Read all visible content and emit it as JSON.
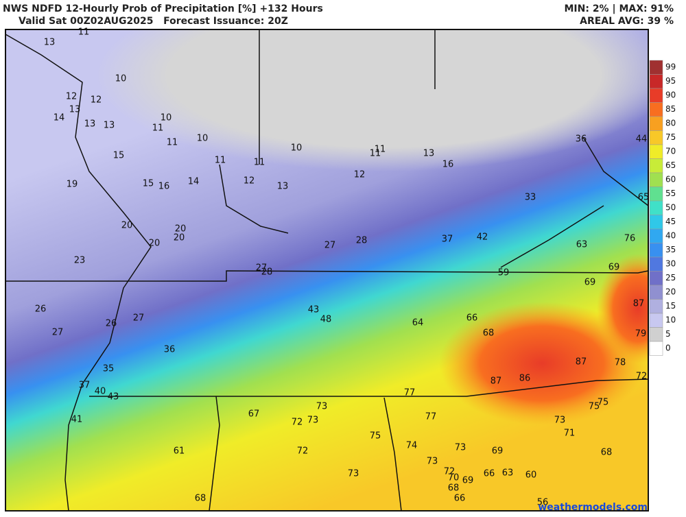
{
  "header": {
    "title": "NWS NDFD 12-Hourly Prob of Precipitation [%] +132 Hours",
    "subtitle": "Valid Sat 00Z02AUG2025   Forecast Issuance: 20Z",
    "minmax": "MIN: 2% | MAX: 91%",
    "areal_avg": "AREAL AVG: 39 %"
  },
  "map": {
    "labels": [
      13,
      11,
      10,
      12,
      12,
      13,
      14,
      13,
      13,
      10,
      11,
      11,
      10,
      15,
      19,
      15,
      16,
      14,
      11,
      11,
      12,
      13,
      10,
      11,
      11,
      13,
      16,
      12,
      33,
      36,
      44,
      65,
      20,
      20,
      20,
      20,
      23,
      27,
      28,
      37,
      42,
      63,
      76,
      27,
      28,
      59,
      69,
      69,
      26,
      27,
      26,
      27,
      43,
      48,
      64,
      66,
      68,
      87,
      79,
      36,
      35,
      87,
      78,
      72,
      37,
      40,
      43,
      87,
      86,
      77,
      67,
      73,
      72,
      73,
      77,
      73,
      75,
      75,
      41,
      75,
      71,
      74,
      73,
      69,
      61,
      72,
      68,
      73,
      72,
      73,
      66,
      63,
      60,
      70,
      69,
      68,
      66,
      68,
      56
    ]
  },
  "legend": {
    "ticks": [
      99,
      95,
      90,
      85,
      80,
      75,
      70,
      65,
      60,
      55,
      50,
      45,
      40,
      35,
      30,
      25,
      20,
      15,
      10,
      5,
      0
    ],
    "colors": [
      "#a03030",
      "#c82828",
      "#e83c28",
      "#f86e20",
      "#f8a020",
      "#f8c828",
      "#f0ec28",
      "#c8ec38",
      "#a0e050",
      "#60e090",
      "#40e0c8",
      "#30c8e8",
      "#30a8f0",
      "#3890f0",
      "#5078e0",
      "#7070c8",
      "#9090d0",
      "#b0b0e0",
      "#c8c8f0",
      "#d0d0d0",
      "#ffffff"
    ]
  },
  "footer": {
    "watermark": "weathermodels.com"
  }
}
